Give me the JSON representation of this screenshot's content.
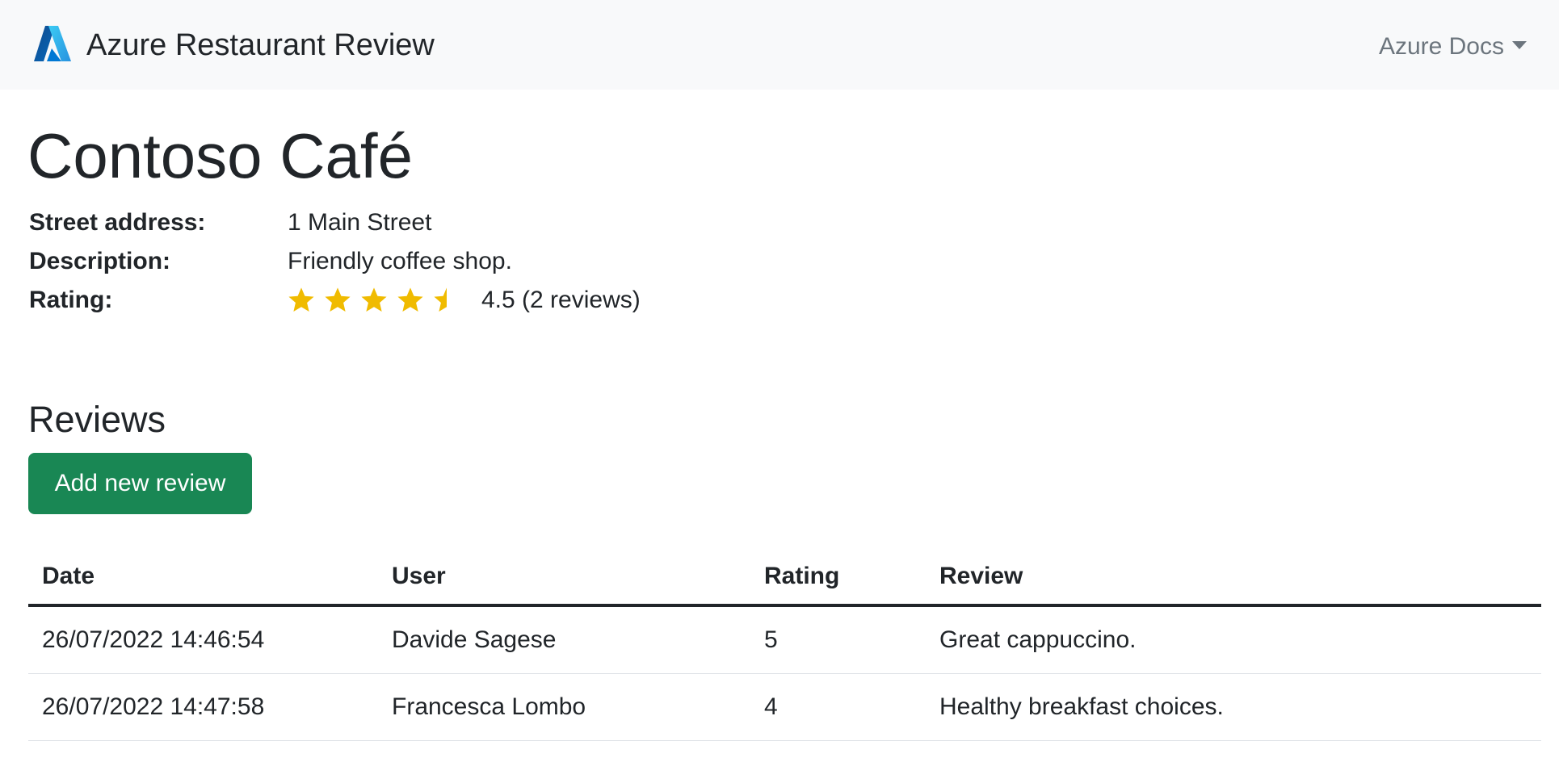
{
  "navbar": {
    "brand": "Azure Restaurant Review",
    "logo_icon": "azure-logo",
    "docs_menu": "Azure Docs"
  },
  "restaurant": {
    "name": "Contoso Café",
    "fields": [
      {
        "label": "Street address:",
        "value": "1 Main Street"
      },
      {
        "label": "Description:",
        "value": "Friendly coffee shop."
      }
    ],
    "rating_label": "Rating:",
    "rating_value": 4.5,
    "rating_max": 5,
    "rating_text": "4.5 (2 reviews)",
    "star_color": "#f0bb00"
  },
  "reviews": {
    "heading": "Reviews",
    "add_button": "Add new review",
    "button_color": "#198754",
    "columns": [
      "Date",
      "User",
      "Rating",
      "Review"
    ],
    "rows": [
      [
        "26/07/2022 14:46:54",
        "Davide Sagese",
        "5",
        "Great cappuccino."
      ],
      [
        "26/07/2022 14:47:58",
        "Francesca Lombo",
        "4",
        "Healthy breakfast choices."
      ]
    ]
  }
}
